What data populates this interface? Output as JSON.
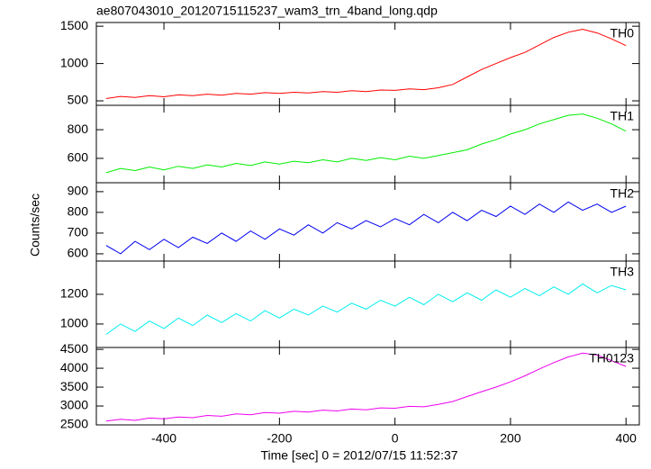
{
  "chart_data": [
    {
      "type": "line",
      "title": "ae807043010_20120715115237_wam3_trn_4band_long.qdp",
      "y_label": "Counts/sec",
      "x": [
        -500,
        -475,
        -450,
        -425,
        -400,
        -375,
        -350,
        -325,
        -300,
        -275,
        -250,
        -225,
        -200,
        -175,
        -150,
        -125,
        -100,
        -75,
        -50,
        -25,
        0,
        25,
        50,
        75,
        100,
        125,
        150,
        175,
        200,
        225,
        250,
        275,
        300,
        325,
        350,
        375,
        400
      ],
      "xlim": [
        -517,
        423
      ],
      "series": [
        {
          "name": "TH0",
          "color": "#ff0000",
          "values": [
            530,
            560,
            545,
            570,
            555,
            580,
            570,
            590,
            575,
            600,
            590,
            610,
            600,
            615,
            605,
            625,
            615,
            635,
            625,
            645,
            640,
            660,
            650,
            675,
            720,
            820,
            920,
            1000,
            1080,
            1150,
            1250,
            1350,
            1420,
            1460,
            1410,
            1330,
            1240
          ]
        }
      ],
      "ylim": [
        440,
        1550
      ],
      "yticks": [
        500,
        1000,
        1500
      ]
    },
    {
      "type": "line",
      "x": [
        -500,
        -475,
        -450,
        -425,
        -400,
        -375,
        -350,
        -325,
        -300,
        -275,
        -250,
        -225,
        -200,
        -175,
        -150,
        -125,
        -100,
        -75,
        -50,
        -25,
        0,
        25,
        50,
        75,
        100,
        125,
        150,
        175,
        200,
        225,
        250,
        275,
        300,
        325,
        350,
        375,
        400
      ],
      "xlim": [
        -517,
        423
      ],
      "series": [
        {
          "name": "TH1",
          "color": "#00ee00",
          "values": [
            500,
            530,
            515,
            540,
            520,
            545,
            530,
            555,
            540,
            565,
            550,
            575,
            560,
            580,
            570,
            590,
            575,
            600,
            585,
            605,
            590,
            615,
            600,
            620,
            640,
            660,
            700,
            730,
            770,
            800,
            840,
            870,
            900,
            910,
            880,
            840,
            790
          ]
        }
      ],
      "ylim": [
        430,
        970
      ],
      "yticks": [
        600,
        800
      ]
    },
    {
      "type": "line",
      "x": [
        -500,
        -475,
        -450,
        -425,
        -400,
        -375,
        -350,
        -325,
        -300,
        -275,
        -250,
        -225,
        -200,
        -175,
        -150,
        -125,
        -100,
        -75,
        -50,
        -25,
        0,
        25,
        50,
        75,
        100,
        125,
        150,
        175,
        200,
        225,
        250,
        275,
        300,
        325,
        350,
        375,
        400
      ],
      "xlim": [
        -517,
        423
      ],
      "series": [
        {
          "name": "TH2",
          "color": "#0000ee",
          "values": [
            640,
            600,
            660,
            620,
            670,
            630,
            680,
            650,
            700,
            660,
            710,
            670,
            720,
            690,
            740,
            700,
            750,
            720,
            760,
            730,
            770,
            740,
            790,
            750,
            800,
            760,
            810,
            780,
            830,
            790,
            840,
            800,
            850,
            810,
            840,
            800,
            830
          ]
        }
      ],
      "ylim": [
        565,
        943
      ],
      "yticks": [
        600,
        700,
        800,
        900
      ]
    },
    {
      "type": "line",
      "x": [
        -500,
        -475,
        -450,
        -425,
        -400,
        -375,
        -350,
        -325,
        -300,
        -275,
        -250,
        -225,
        -200,
        -175,
        -150,
        -125,
        -100,
        -75,
        -50,
        -25,
        0,
        25,
        50,
        75,
        100,
        125,
        150,
        175,
        200,
        225,
        250,
        275,
        300,
        325,
        350,
        375,
        400
      ],
      "xlim": [
        -517,
        423
      ],
      "series": [
        {
          "name": "TH3",
          "color": "#00eeee",
          "values": [
            930,
            1000,
            950,
            1020,
            970,
            1040,
            990,
            1060,
            1010,
            1070,
            1020,
            1090,
            1040,
            1100,
            1060,
            1120,
            1080,
            1140,
            1100,
            1160,
            1120,
            1180,
            1130,
            1200,
            1150,
            1210,
            1160,
            1230,
            1180,
            1240,
            1190,
            1250,
            1200,
            1270,
            1210,
            1260,
            1230
          ]
        }
      ],
      "ylim": [
        842,
        1424
      ],
      "yticks": [
        1000,
        1200
      ]
    },
    {
      "type": "line",
      "x_label": "Time [sec] 0 = 2012/07/15 11:52:37",
      "x": [
        -500,
        -475,
        -450,
        -425,
        -400,
        -375,
        -350,
        -325,
        -300,
        -275,
        -250,
        -225,
        -200,
        -175,
        -150,
        -125,
        -100,
        -75,
        -50,
        -25,
        0,
        25,
        50,
        75,
        100,
        125,
        150,
        175,
        200,
        225,
        250,
        275,
        300,
        325,
        350,
        375,
        400
      ],
      "xlim": [
        -517,
        423
      ],
      "xticks": [
        -400,
        -200,
        0,
        200,
        400
      ],
      "series": [
        {
          "name": "TH0123",
          "color": "#ee00ee",
          "values": [
            2600,
            2650,
            2620,
            2680,
            2660,
            2710,
            2690,
            2750,
            2730,
            2790,
            2770,
            2830,
            2810,
            2860,
            2840,
            2890,
            2870,
            2920,
            2900,
            2950,
            2940,
            2990,
            2980,
            3040,
            3120,
            3250,
            3380,
            3500,
            3640,
            3800,
            3980,
            4150,
            4300,
            4400,
            4350,
            4200,
            4050
          ]
        }
      ],
      "ylim": [
        2500,
        4550
      ],
      "yticks": [
        2500,
        3000,
        3500,
        4000,
        4500
      ]
    }
  ]
}
